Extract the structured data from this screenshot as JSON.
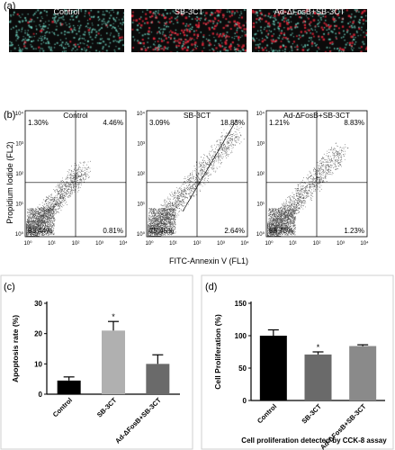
{
  "panel_labels": {
    "a": "(a)",
    "b": "(b)",
    "c": "(c)",
    "d": "(d)"
  },
  "micrographs": [
    {
      "title": "Control",
      "red_density": 0.05
    },
    {
      "title": "SB-3CT",
      "red_density": 0.45
    },
    {
      "title": "Ad-ΔFosB+SB-3CT",
      "red_density": 0.3
    }
  ],
  "flow": {
    "ylabel": "Propidium Iodide (FL2)",
    "xlabel": "FITC-Annexin V (FL1)",
    "ticks": [
      "10⁰",
      "10¹",
      "10²",
      "10³",
      "10⁴"
    ],
    "plots": [
      {
        "title": "Control",
        "ul": "1.30%",
        "ur": "4.46%",
        "ll": "93.44%",
        "lr": "0.81%"
      },
      {
        "title": "SB-3CT",
        "ul": "3.09%",
        "ur": "18.83%",
        "ll": "75.45%",
        "lr": "2.64%"
      },
      {
        "title": "Ad-ΔFosB+SB-3CT",
        "ul": "1.21%",
        "ur": "8.83%",
        "ll": "88.73%",
        "lr": "1.23%"
      }
    ]
  },
  "chart_data": [
    {
      "type": "bar",
      "panel": "(c)",
      "title": "",
      "xlabel": "",
      "ylabel": "Apoptosis rate (%)",
      "categories": [
        "Control",
        "SB-3CT",
        "Ad-ΔFosB+SB-3CT"
      ],
      "values": [
        4.5,
        21,
        10
      ],
      "errors": [
        1.2,
        3.0,
        3.0
      ],
      "significance": [
        "",
        "*",
        ""
      ],
      "ylim": [
        0,
        30
      ],
      "yticks": [
        0,
        10,
        20,
        30
      ],
      "colors": [
        "#000000",
        "#b0b0b0",
        "#6a6a6a"
      ]
    },
    {
      "type": "bar",
      "panel": "(d)",
      "title": "",
      "xlabel": "",
      "ylabel": "Cell Proliferation (%)",
      "categories": [
        "Control",
        "SB-3CT",
        "Ad-ΔFosB+SB-3CT"
      ],
      "values": [
        100,
        71,
        84
      ],
      "errors": [
        9,
        4,
        2
      ],
      "significance": [
        "",
        "*",
        ""
      ],
      "ylim": [
        0,
        150
      ],
      "yticks": [
        0,
        50,
        100,
        150
      ],
      "colors": [
        "#000000",
        "#6a6a6a",
        "#8a8a8a"
      ],
      "caption": "Cell proliferation detected by CCK-8 assay"
    }
  ]
}
